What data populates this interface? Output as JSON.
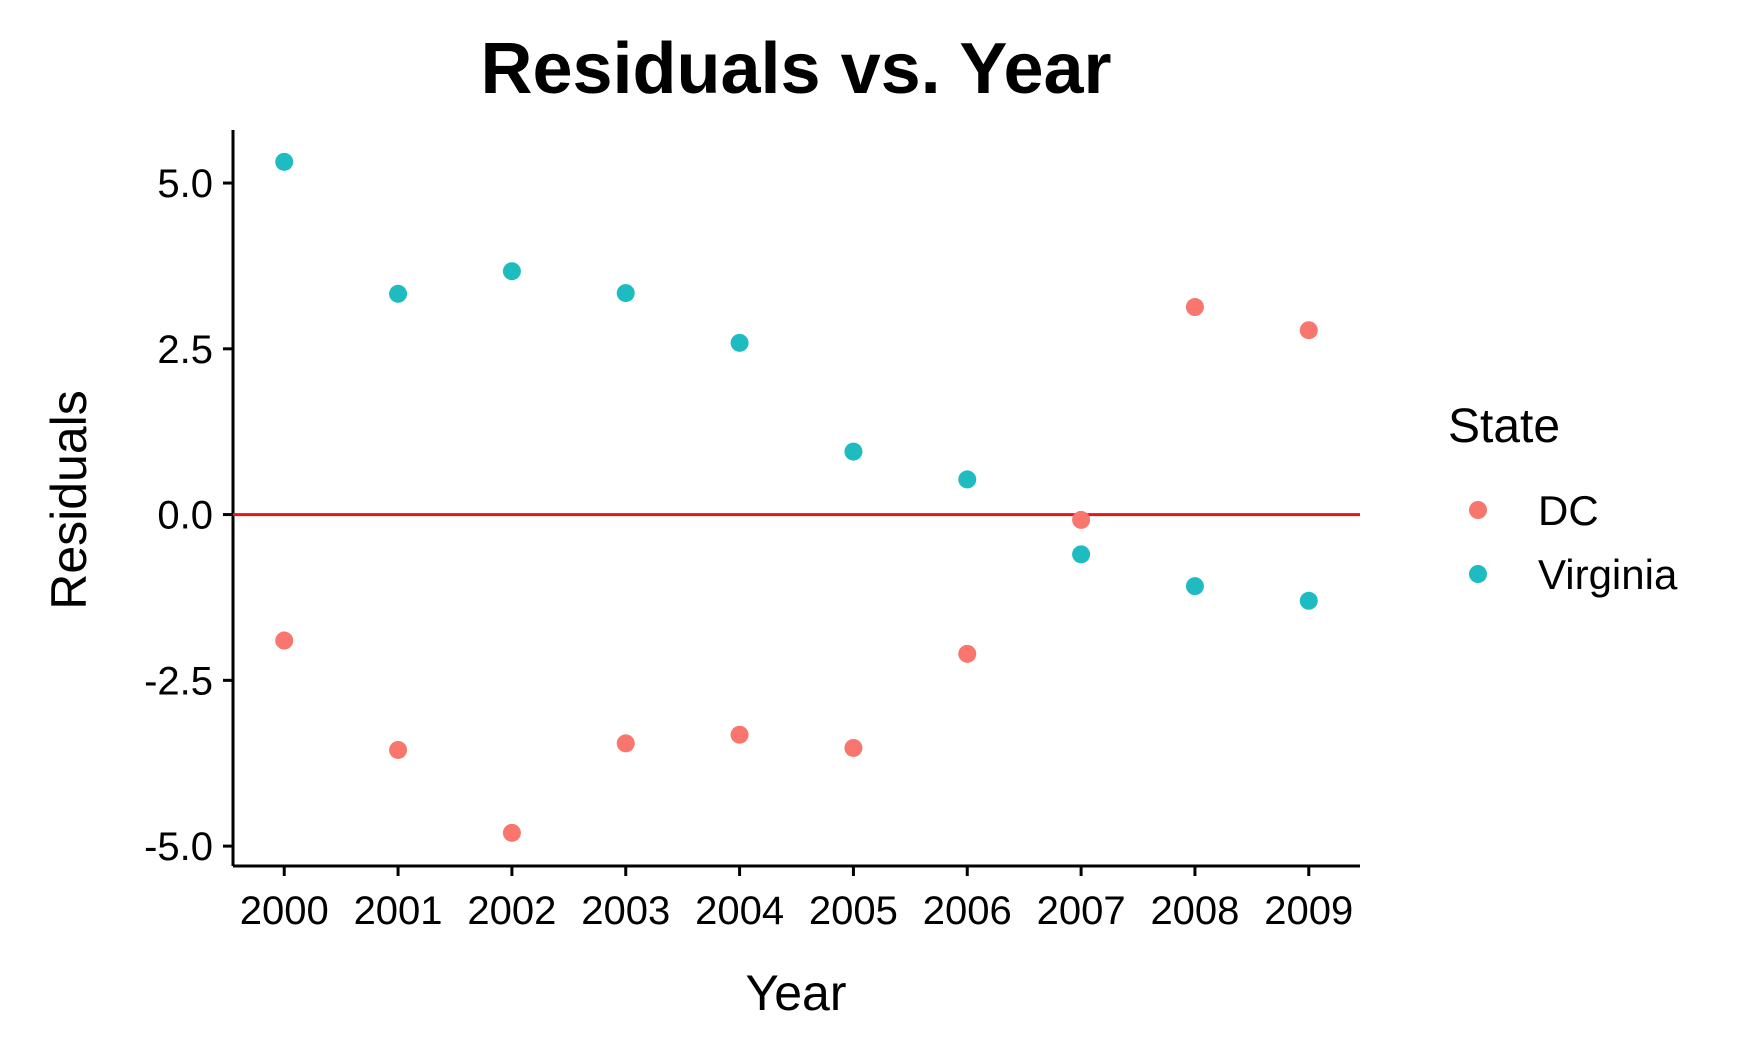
{
  "chart_data": {
    "type": "scatter",
    "title": "Residuals vs. Year",
    "xlabel": "Year",
    "ylabel": "Residuals",
    "x_ticks": [
      "2000",
      "2001",
      "2002",
      "2003",
      "2004",
      "2005",
      "2006",
      "2007",
      "2008",
      "2009"
    ],
    "y_ticks": [
      5.0,
      2.5,
      0.0,
      -2.5,
      -5.0
    ],
    "y_tick_labels": [
      "5.0",
      "2.5",
      "0.0",
      "-2.5",
      "-5.0"
    ],
    "ylim": [
      -5.3,
      5.8
    ],
    "xlim": [
      1999.55,
      2009.45
    ],
    "grid": false,
    "reference_line": {
      "y": 0,
      "color": "#e8141c"
    },
    "legend": {
      "title": "State",
      "position": "right"
    },
    "series": [
      {
        "name": "DC",
        "color": "#f8766d",
        "x": [
          2000,
          2001,
          2002,
          2003,
          2004,
          2005,
          2006,
          2007,
          2008,
          2009
        ],
        "y": [
          -1.9,
          -3.55,
          -4.8,
          -3.45,
          -3.32,
          -3.52,
          -2.1,
          -0.08,
          3.13,
          2.78
        ]
      },
      {
        "name": "Virginia",
        "color": "#1ebcc0",
        "x": [
          2000,
          2001,
          2002,
          2003,
          2004,
          2005,
          2006,
          2007,
          2008,
          2009
        ],
        "y": [
          5.32,
          3.33,
          3.67,
          3.34,
          2.59,
          0.95,
          0.53,
          -0.6,
          -1.08,
          -1.3
        ]
      }
    ]
  }
}
